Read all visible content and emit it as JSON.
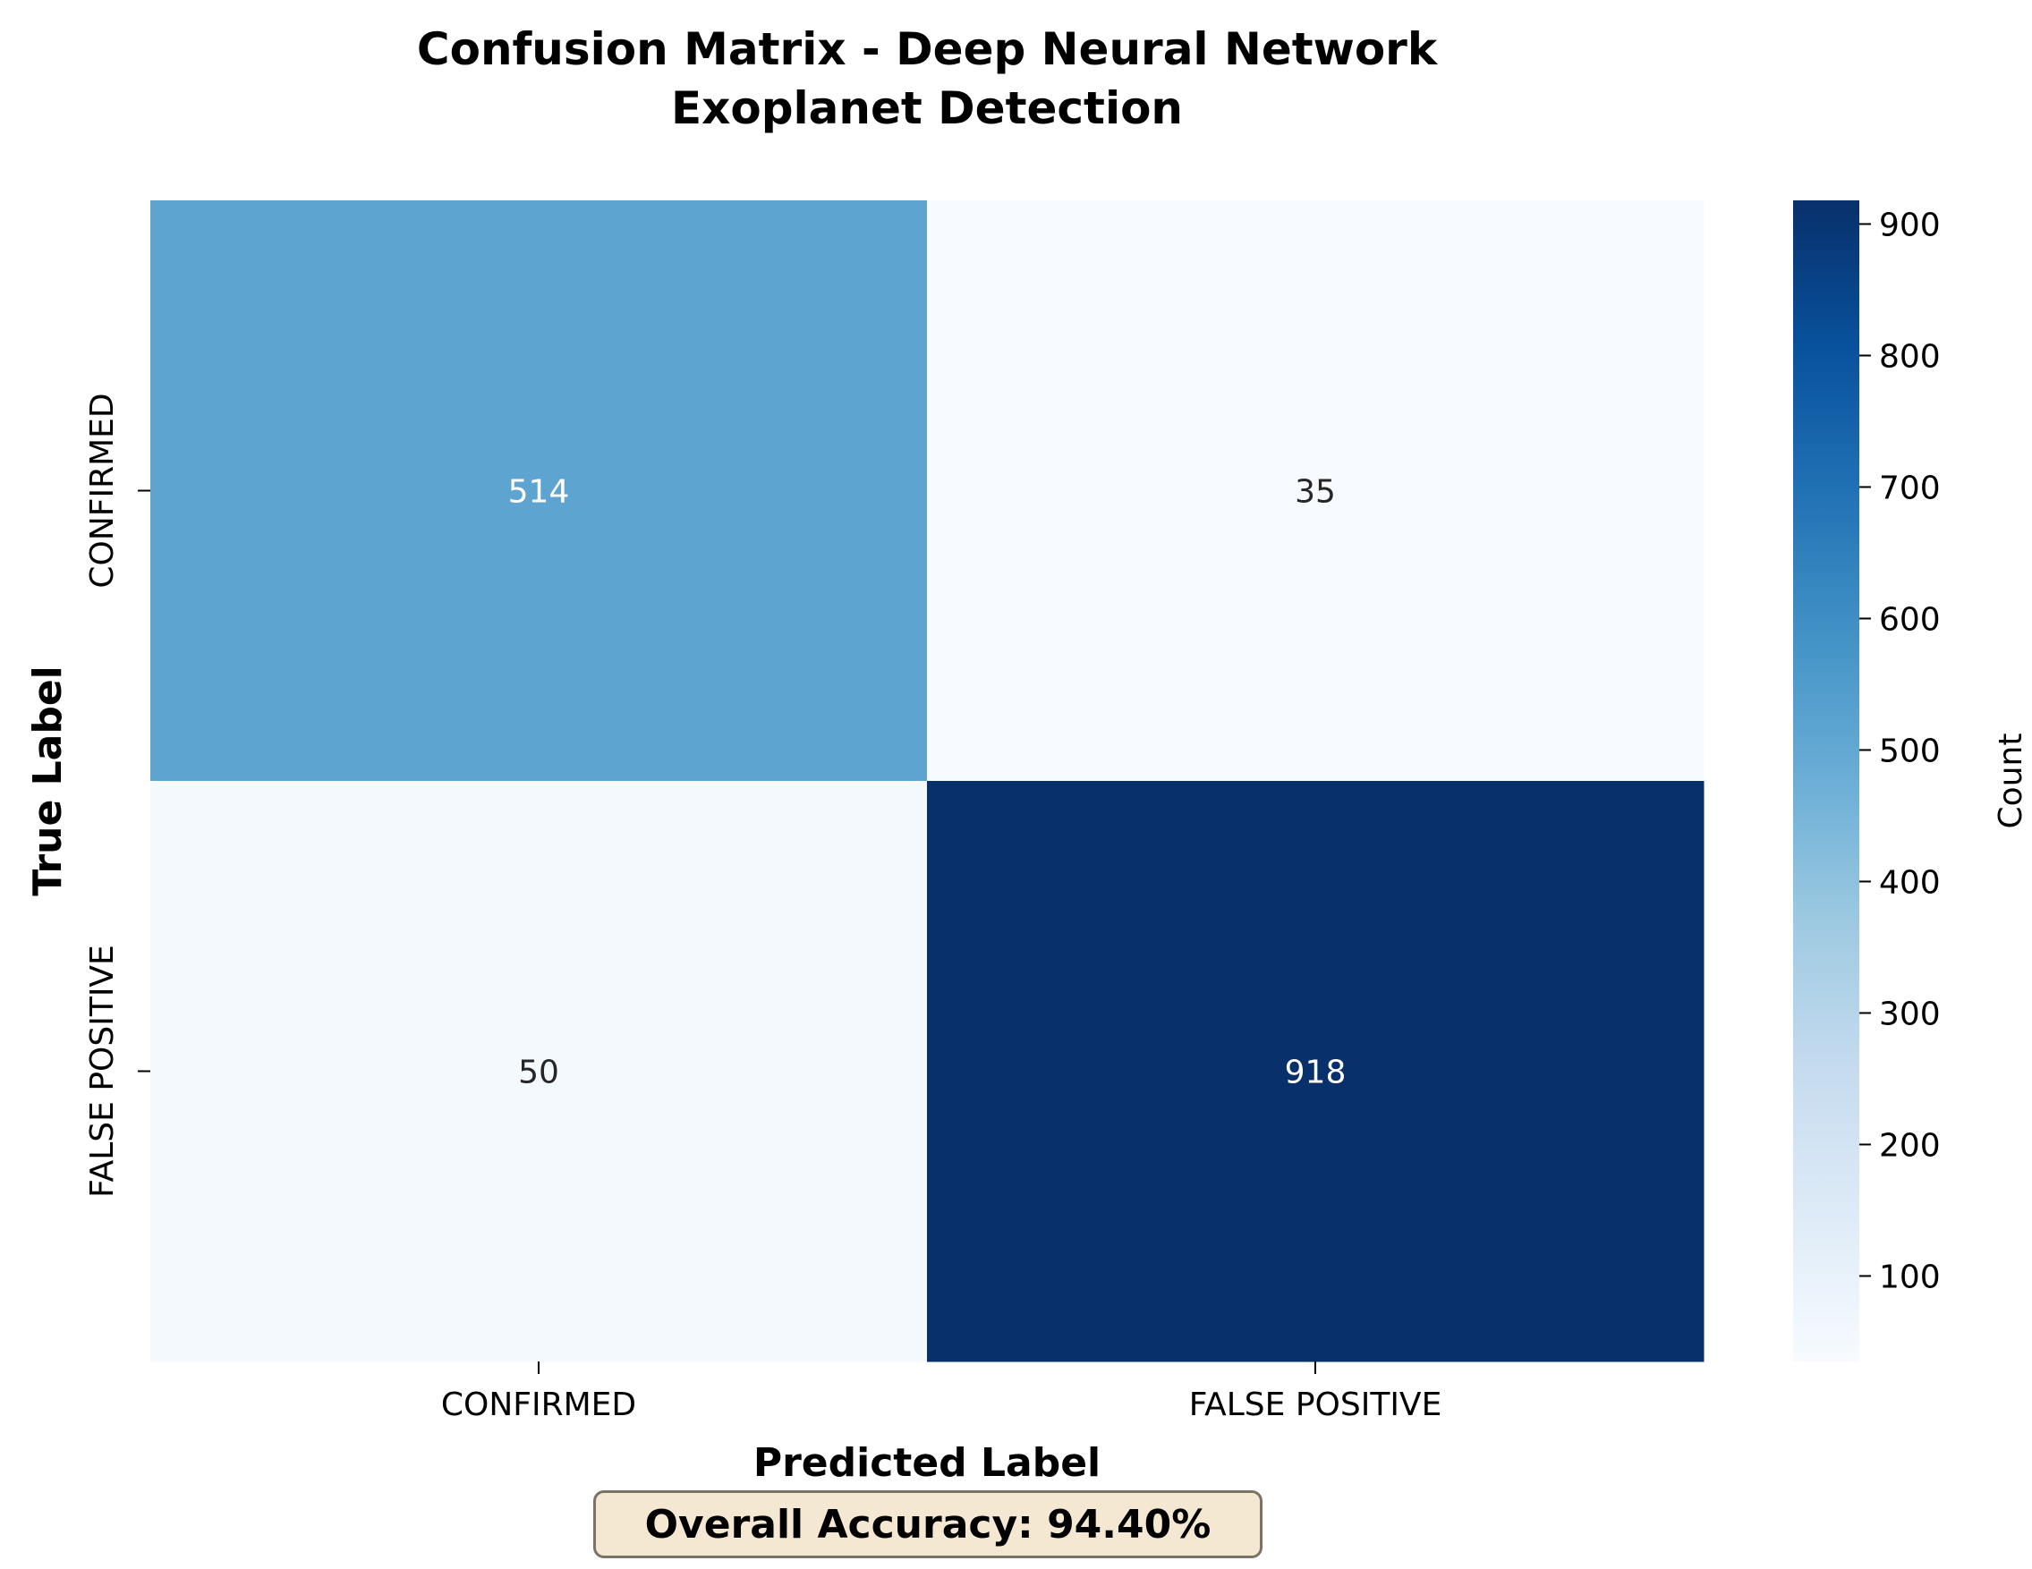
{
  "chart_data": {
    "type": "heatmap",
    "title_lines": [
      "Confusion Matrix - Deep Neural Network",
      "Exoplanet Detection"
    ],
    "xlabel": "Predicted Label",
    "ylabel": "True Label",
    "x_categories": [
      "CONFIRMED",
      "FALSE POSITIVE"
    ],
    "y_categories": [
      "CONFIRMED",
      "FALSE POSITIVE"
    ],
    "values": [
      [
        514,
        35
      ],
      [
        50,
        918
      ]
    ],
    "colormap": "Blues",
    "colorbar": {
      "label": "Count",
      "range": [
        35,
        918
      ],
      "ticks": [
        100,
        200,
        300,
        400,
        500,
        600,
        700,
        800,
        900
      ]
    },
    "annotation": "Overall Accuracy: 94.40%"
  }
}
